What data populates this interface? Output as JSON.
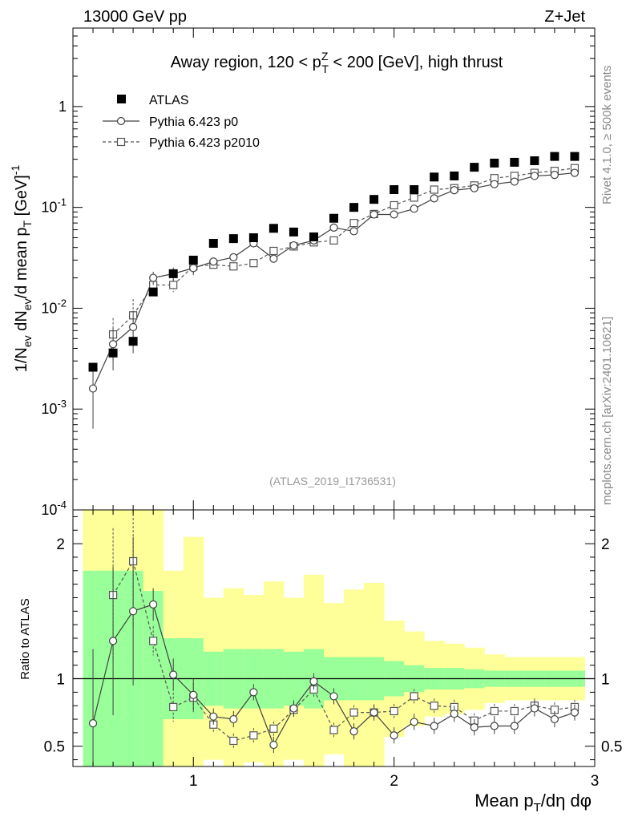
{
  "header": {
    "energy": "13000 GeV pp",
    "process": "Z+Jet",
    "rivet": "Rivet 4.1.0, ≥ 500k events",
    "mcplots": "mcplots.cern.ch [arXiv:2401.10621]"
  },
  "chart_data": [
    {
      "type": "scatter",
      "panel": "main",
      "title": "Away region, 120 < pTZ < 200 [GeV], high thrust",
      "title_parts": {
        "pre": "Away region, 120 < p",
        "sup": "Z",
        "sub": "T",
        "post": " < 200 [GeV], high thrust"
      },
      "ylabel": "1/N_ev dN_ev/d mean p_T [GeV]^-1",
      "ylabel_parts": {
        "p1": "1/N",
        "s1": "ev",
        "p2": " dN",
        "s2": "ev",
        "p3": "/d mean p",
        "s3": "T",
        "p4": " [GeV]",
        "s4": "-1"
      },
      "yscale": "log",
      "ylim": [
        0.0001,
        6.0
      ],
      "xlim": [
        0.4,
        3.0
      ],
      "ytick_labels": [
        {
          "value": 0.0001,
          "base": "10",
          "exp": "-4"
        },
        {
          "value": 0.001,
          "base": "10",
          "exp": "-3"
        },
        {
          "value": 0.01,
          "base": "10",
          "exp": "-2"
        },
        {
          "value": 0.1,
          "base": "10",
          "exp": "-1"
        },
        {
          "value": 1,
          "base": "1",
          "exp": ""
        }
      ],
      "legend": [
        "ATLAS",
        "Pythia 6.423 p0",
        "Pythia 6.423 p2010"
      ],
      "watermark": "(ATLAS_2019_I1736531)",
      "x": [
        0.5,
        0.6,
        0.7,
        0.8,
        0.9,
        1.0,
        1.1,
        1.2,
        1.3,
        1.4,
        1.5,
        1.6,
        1.7,
        1.8,
        1.9,
        2.0,
        2.1,
        2.2,
        2.3,
        2.4,
        2.5,
        2.6,
        2.7,
        2.8,
        2.9
      ],
      "series": [
        {
          "name": "ATLAS",
          "values": [
            0.0026,
            0.0036,
            0.0047,
            0.0145,
            0.022,
            0.03,
            0.044,
            0.049,
            0.05,
            0.062,
            0.057,
            0.051,
            0.078,
            0.1,
            0.12,
            0.15,
            0.15,
            0.2,
            0.205,
            0.25,
            0.275,
            0.28,
            0.29,
            0.32,
            0.32
          ]
        },
        {
          "name": "Pythia 6.423 p0",
          "values": [
            0.0016,
            0.0044,
            0.0065,
            0.02,
            0.022,
            0.025,
            0.029,
            0.032,
            0.044,
            0.031,
            0.042,
            0.047,
            0.063,
            0.058,
            0.085,
            0.085,
            0.097,
            0.123,
            0.148,
            0.155,
            0.17,
            0.18,
            0.205,
            0.21,
            0.22
          ]
        },
        {
          "name": "Pythia 6.423 p2010",
          "values": [
            null,
            0.0055,
            0.0085,
            0.017,
            0.017,
            0.026,
            0.027,
            0.026,
            0.028,
            0.037,
            0.041,
            0.045,
            0.047,
            0.07,
            0.086,
            0.105,
            0.125,
            0.15,
            0.155,
            0.165,
            0.195,
            0.205,
            0.22,
            0.23,
            0.245
          ]
        }
      ]
    },
    {
      "type": "line",
      "panel": "ratio",
      "ylabel": "Ratio to ATLAS",
      "xlabel": "Mean pT/dη dφ",
      "xlabel_parts": {
        "p1": "Mean p",
        "s1": "T",
        "p2": "/dη dφ"
      },
      "ylim": [
        0.35,
        2.25
      ],
      "xlim": [
        0.4,
        3.0
      ],
      "yticks": [
        0.5,
        1,
        2
      ],
      "ytick_labels": [
        "0.5",
        "1",
        "2"
      ],
      "xticks": [
        1,
        2,
        3
      ],
      "xtick_labels": [
        "1",
        "2",
        "3"
      ],
      "x": [
        0.5,
        0.6,
        0.7,
        0.8,
        0.9,
        1.0,
        1.1,
        1.2,
        1.3,
        1.4,
        1.5,
        1.6,
        1.7,
        1.8,
        1.9,
        2.0,
        2.1,
        2.2,
        2.3,
        2.4,
        2.5,
        2.6,
        2.7,
        2.8,
        2.9
      ],
      "band_inner_half_width": [
        0.8,
        0.8,
        0.8,
        0.65,
        0.3,
        0.3,
        0.2,
        0.22,
        0.22,
        0.22,
        0.2,
        0.22,
        0.16,
        0.16,
        0.16,
        0.13,
        0.1,
        0.08,
        0.08,
        0.07,
        0.06,
        0.06,
        0.06,
        0.06,
        0.06
      ],
      "band_outer_half_width": [
        0.65,
        0.65,
        0.65,
        0.65,
        0.5,
        0.75,
        0.4,
        0.45,
        0.4,
        0.5,
        0.4,
        0.55,
        0.4,
        0.5,
        0.55,
        0.3,
        0.25,
        0.2,
        0.18,
        0.16,
        0.12,
        0.1,
        0.1,
        0.1,
        0.1
      ],
      "series": [
        {
          "name": "Pythia 6.423 p0",
          "values": [
            0.67,
            1.28,
            1.5,
            1.55,
            1.03,
            0.88,
            0.72,
            0.7,
            0.9,
            0.51,
            0.78,
            0.98,
            0.87,
            0.61,
            0.75,
            0.58,
            0.68,
            0.65,
            0.74,
            0.64,
            0.65,
            0.65,
            0.78,
            0.7,
            0.75
          ]
        },
        {
          "name": "Pythia 6.423 p2010",
          "values": [
            null,
            1.62,
            1.87,
            1.28,
            0.79,
            0.86,
            0.66,
            0.54,
            0.58,
            0.63,
            0.77,
            0.92,
            0.62,
            0.75,
            0.75,
            0.76,
            0.87,
            0.8,
            0.79,
            0.69,
            0.76,
            0.76,
            0.8,
            0.77,
            0.79
          ]
        }
      ]
    }
  ]
}
